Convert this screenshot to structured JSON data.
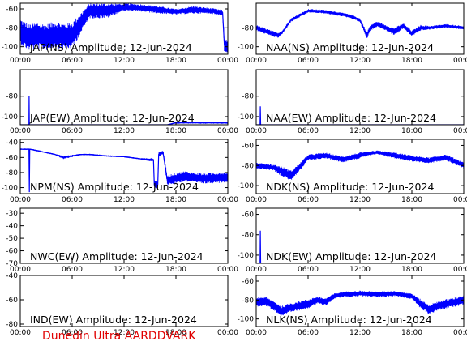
{
  "credit": "Dunedin Ultra AARDDVARK",
  "colors": {
    "trace": "#0000ff",
    "frame": "#000000",
    "credit": "#e00000"
  },
  "chart_data": [
    {
      "type": "line",
      "title": "JAP(NS) Amplitude: 12-Jun-2024",
      "x_ticks": [
        "00:00",
        "06:00",
        "12:00",
        "18:00",
        "00:00"
      ],
      "y_ticks": [
        "-60",
        "-80",
        "-100"
      ],
      "ylim": [
        -108,
        -54
      ],
      "series": [
        {
          "x": [
            0,
            1,
            2,
            3,
            4,
            5,
            6,
            8,
            10,
            12,
            14,
            16,
            18,
            20,
            22,
            23.4,
            23.6,
            24
          ],
          "y": [
            -84,
            -90,
            -88,
            -90,
            -87,
            -89,
            -88,
            -62,
            -62,
            -58,
            -59,
            -61,
            -63,
            -61,
            -62,
            -64,
            -98,
            -100
          ],
          "noise": [
            14,
            14,
            14,
            14,
            14,
            14,
            14,
            8,
            8,
            4,
            4,
            4,
            3,
            4,
            3,
            3,
            8,
            8
          ]
        }
      ]
    },
    {
      "type": "line",
      "title": "NAA(NS) Amplitude: 12-Jun-2024",
      "x_ticks": [
        "00:00",
        "06:00",
        "12:00",
        "18:00",
        "00:00"
      ],
      "y_ticks": [
        "-80",
        "-100"
      ],
      "ylim": [
        -108,
        -54
      ],
      "series": [
        {
          "x": [
            0,
            1.5,
            2.5,
            3,
            4,
            6,
            8,
            10,
            11,
            12,
            12.8,
            13.2,
            14,
            15,
            16,
            17,
            18,
            19,
            20,
            22,
            24
          ],
          "y": [
            -80,
            -85,
            -88,
            -85,
            -72,
            -62,
            -63,
            -66,
            -68,
            -72,
            -88,
            -80,
            -76,
            -80,
            -84,
            -78,
            -86,
            -80,
            -80,
            -78,
            -80
          ],
          "noise": [
            3,
            3,
            3,
            2,
            2,
            2,
            2,
            2,
            2,
            2,
            4,
            3,
            3,
            3,
            4,
            3,
            3,
            3,
            2,
            2,
            2
          ]
        }
      ]
    },
    {
      "type": "line",
      "title": "JAP(EW) Amplitude: 12-Jun-2024",
      "x_ticks": [
        "00:00",
        "06:00",
        "12:00",
        "18:00",
        "00:00"
      ],
      "y_ticks": [
        "-80",
        "-100"
      ],
      "ylim": [
        -108,
        -54
      ],
      "series": [
        {
          "x": [
            0,
            1,
            1.02,
            1.05,
            6,
            12,
            17,
            18,
            24
          ],
          "y": [
            -108,
            -108,
            -80,
            -108,
            -108,
            -108,
            -108,
            -106,
            -106
          ],
          "noise": [
            0,
            0,
            0,
            0,
            0,
            0,
            0,
            1,
            1
          ]
        }
      ]
    },
    {
      "type": "line",
      "title": "NAA(EW) Amplitude: 12-Jun-2024",
      "x_ticks": [
        "00:00",
        "06:00",
        "12:00",
        "18:00",
        "00:00"
      ],
      "y_ticks": [
        "-80",
        "-100"
      ],
      "ylim": [
        -108,
        -54
      ],
      "series": [
        {
          "x": [
            0,
            0.45,
            0.48,
            0.52,
            24
          ],
          "y": [
            -108,
            -108,
            -90,
            -108,
            -108
          ],
          "noise": [
            0,
            0,
            0,
            0,
            0
          ]
        }
      ]
    },
    {
      "type": "line",
      "title": "NPM(NS) Amplitude: 12-Jun-2024",
      "x_ticks": [
        "00:00",
        "06:00",
        "12:00",
        "18:00",
        "00:00"
      ],
      "y_ticks": [
        "-40",
        "-60",
        "-80",
        "-100"
      ],
      "ylim": [
        -108,
        -36
      ],
      "series": [
        {
          "x": [
            0,
            1,
            1.05,
            1.1,
            2,
            4,
            5,
            7,
            8,
            10,
            12,
            14,
            15,
            15.4,
            15.5,
            15.9,
            16,
            16.5,
            17,
            19,
            21,
            24
          ],
          "y": [
            -49,
            -49,
            -106,
            -49,
            -51,
            -56,
            -60,
            -56,
            -56,
            -58,
            -59,
            -62,
            -63,
            -63,
            -96,
            -96,
            -56,
            -53,
            -90,
            -85,
            -88,
            -86
          ],
          "noise": [
            1,
            1,
            0,
            1,
            1,
            1,
            2,
            1,
            1,
            1,
            1,
            1,
            2,
            2,
            6,
            6,
            3,
            3,
            7,
            7,
            7,
            7
          ]
        }
      ]
    },
    {
      "type": "line",
      "title": "NDK(NS) Amplitude: 12-Jun-2024",
      "x_ticks": [
        "00:00",
        "06:00",
        "12:00",
        "18:00",
        "00:00"
      ],
      "y_ticks": [
        "-60",
        "-80",
        "-100"
      ],
      "ylim": [
        -108,
        -54
      ],
      "series": [
        {
          "x": [
            0,
            2,
            3,
            4,
            5,
            6,
            8,
            10,
            11,
            12,
            13,
            14,
            16,
            18,
            20,
            22,
            23,
            24
          ],
          "y": [
            -80,
            -82,
            -86,
            -90,
            -82,
            -72,
            -70,
            -74,
            -72,
            -70,
            -68,
            -67,
            -70,
            -73,
            -75,
            -72,
            -76,
            -80
          ],
          "noise": [
            3,
            3,
            5,
            5,
            4,
            3,
            3,
            3,
            3,
            3,
            2,
            2,
            3,
            3,
            3,
            3,
            3,
            3
          ]
        }
      ]
    },
    {
      "type": "line",
      "title": "NWC(EW) Amplitude: 12-Jun-2024",
      "x_ticks": [
        "00:00",
        "06:00",
        "12:00",
        "18:00",
        "00:00"
      ],
      "y_ticks": [
        "-30",
        "-40",
        "-50",
        "-60",
        "-70"
      ],
      "ylim": [
        -70,
        -26
      ],
      "series": []
    },
    {
      "type": "line",
      "title": "NDK(EW) Amplitude: 12-Jun-2024",
      "x_ticks": [
        "00:00",
        "06:00",
        "12:00",
        "18:00",
        "00:00"
      ],
      "y_ticks": [
        "-60",
        "-80",
        "-100"
      ],
      "ylim": [
        -108,
        -54
      ],
      "series": [
        {
          "x": [
            0,
            0.45,
            0.48,
            0.52,
            24
          ],
          "y": [
            -108,
            -108,
            -76,
            -108,
            -108
          ],
          "noise": [
            0,
            0,
            0,
            0,
            0
          ]
        }
      ]
    },
    {
      "type": "line",
      "title": "IND(EW) Amplitude: 12-Jun-2024",
      "x_ticks": [
        "00:00",
        "06:00",
        "12:00",
        "18:00",
        "00:00"
      ],
      "y_ticks": [
        "-40",
        "-60",
        "-80"
      ],
      "ylim": [
        -82,
        -40
      ],
      "series": []
    },
    {
      "type": "line",
      "title": "NLK(NS) Amplitude: 12-Jun-2024",
      "x_ticks": [
        "00:00",
        "06:00",
        "12:00",
        "18:00",
        "00:00"
      ],
      "y_ticks": [
        "-60",
        "-80",
        "-100"
      ],
      "ylim": [
        -108,
        -54
      ],
      "series": [
        {
          "x": [
            0,
            1,
            2,
            3,
            4,
            5,
            6,
            7,
            8,
            9,
            10,
            12,
            14,
            16,
            18,
            19,
            20,
            21,
            22,
            24
          ],
          "y": [
            -82,
            -81,
            -86,
            -92,
            -88,
            -86,
            -84,
            -80,
            -82,
            -76,
            -74,
            -73,
            -74,
            -73,
            -76,
            -84,
            -90,
            -86,
            -84,
            -80
          ],
          "noise": [
            5,
            5,
            5,
            6,
            5,
            5,
            5,
            4,
            4,
            3,
            3,
            3,
            3,
            3,
            3,
            5,
            5,
            5,
            5,
            5
          ]
        }
      ]
    }
  ]
}
